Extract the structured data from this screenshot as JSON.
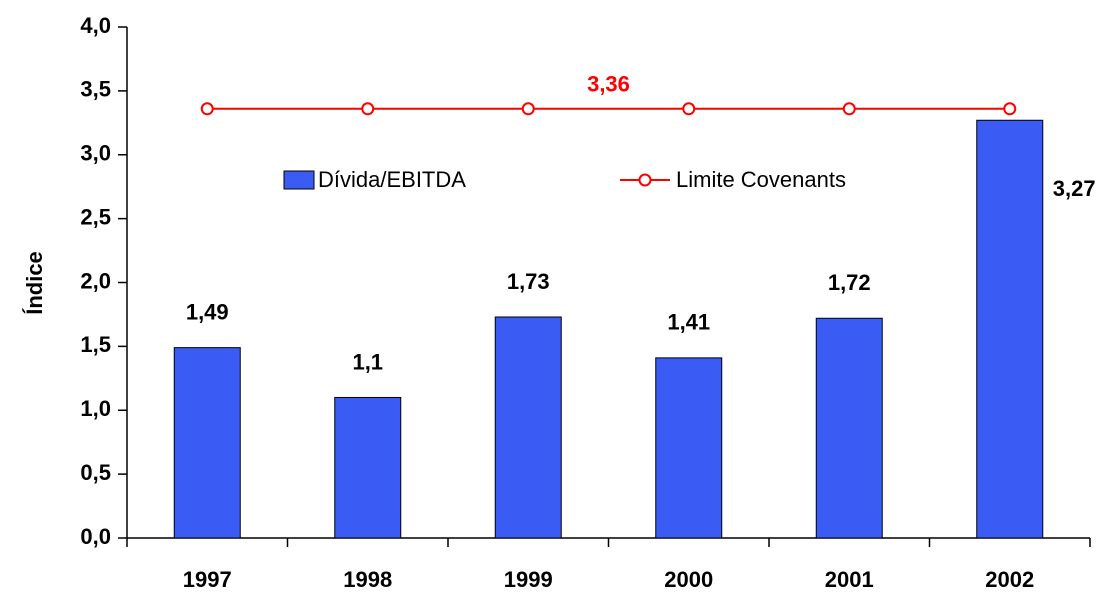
{
  "chart_data": {
    "type": "bar",
    "y_label": "Índice",
    "categories": [
      "1997",
      "1998",
      "1999",
      "2000",
      "2001",
      "2002"
    ],
    "series": [
      {
        "name": "Dívida/EBITDA",
        "type": "bar",
        "color": "#3a5cf5",
        "values": [
          1.49,
          1.1,
          1.73,
          1.41,
          1.72,
          3.27
        ],
        "value_labels": [
          "1,49",
          "1,1",
          "1,73",
          "1,41",
          "1,72",
          "3,27"
        ]
      },
      {
        "name": "Limite Covenants",
        "type": "line",
        "color": "#ff0000",
        "values": [
          3.36,
          3.36,
          3.36,
          3.36,
          3.36,
          3.36
        ]
      }
    ],
    "annotations": [
      {
        "text": "3,36",
        "value": 3.36
      }
    ],
    "ylim": [
      0,
      4
    ],
    "yticks": [
      {
        "value": 0,
        "label": "0,0"
      },
      {
        "value": 0.5,
        "label": "0,5"
      },
      {
        "value": 1,
        "label": "1,0"
      },
      {
        "value": 1.5,
        "label": "1,5"
      },
      {
        "value": 2,
        "label": "2,0"
      },
      {
        "value": 2.5,
        "label": "2,5"
      },
      {
        "value": 3,
        "label": "3,0"
      },
      {
        "value": 3.5,
        "label": "3,5"
      },
      {
        "value": 4,
        "label": "4,0"
      }
    ],
    "grid": false,
    "legend": "top"
  }
}
